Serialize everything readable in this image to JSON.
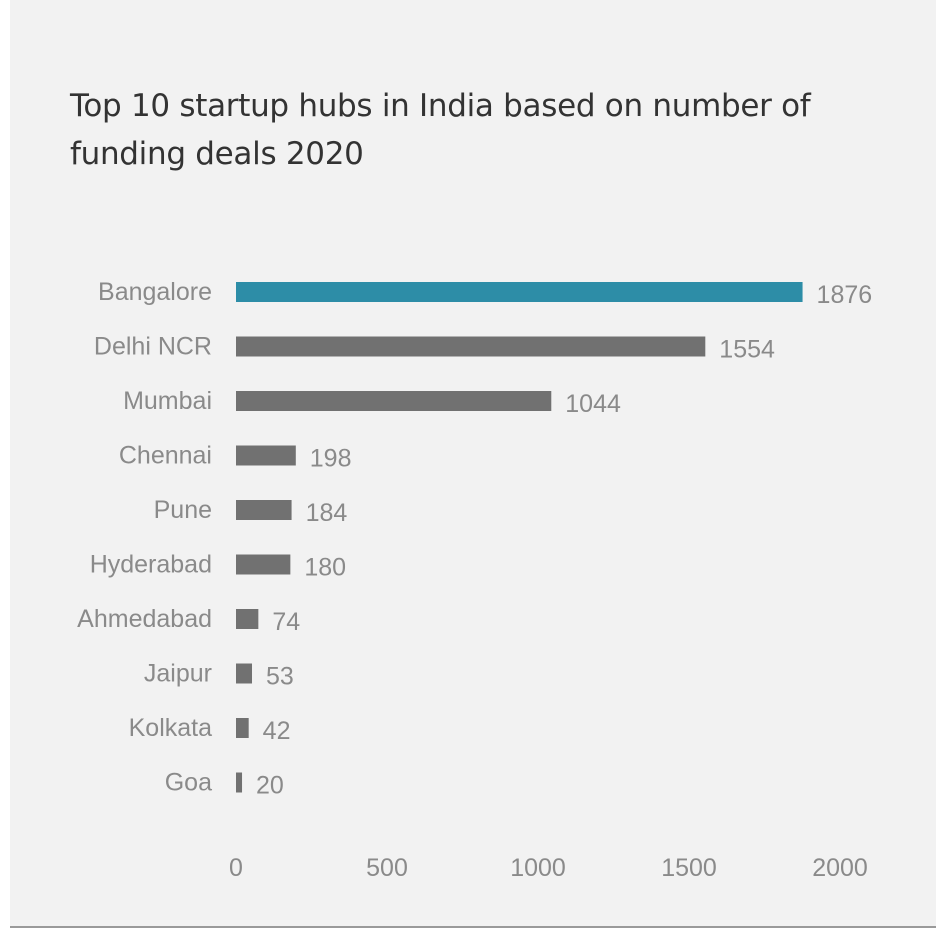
{
  "chart_data": {
    "type": "bar",
    "orientation": "horizontal",
    "title": "Top 10 startup hubs in India based on number of funding deals 2020",
    "categories": [
      "Bangalore",
      "Delhi NCR",
      "Mumbai",
      "Chennai",
      "Pune",
      "Hyderabad",
      "Ahmedabad",
      "Jaipur",
      "Kolkata",
      "Goa"
    ],
    "values": [
      1876,
      1554,
      1044,
      198,
      184,
      180,
      74,
      53,
      42,
      20
    ],
    "xticks": [
      0,
      500,
      1000,
      1500,
      2000
    ],
    "xlim": [
      0,
      2000
    ],
    "xlabel": "",
    "ylabel": "",
    "grid": false,
    "legend": "none",
    "data_labels": true,
    "colors": {
      "highlight": "#2d8da7",
      "bar": "#717171",
      "label": "#8a8a8a",
      "title": "#333333",
      "background": "#f2f2f2"
    }
  }
}
